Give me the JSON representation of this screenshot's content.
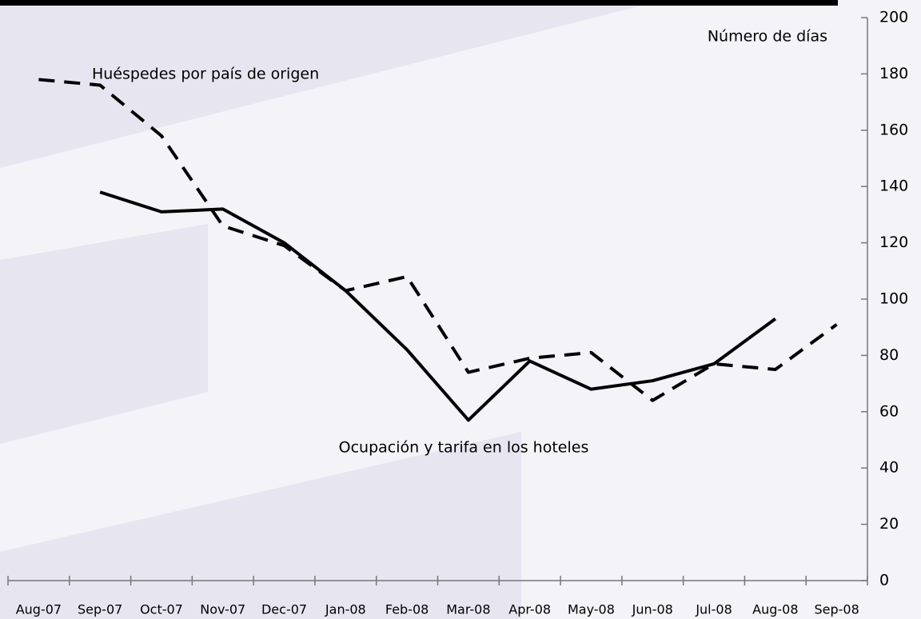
{
  "chart_data": {
    "type": "line",
    "y_label": "Número de días",
    "categories": [
      "Aug-07",
      "Sep-07",
      "Oct-07",
      "Nov-07",
      "Dec-07",
      "Jan-08",
      "Feb-08",
      "Mar-08",
      "Apr-08",
      "May-08",
      "Jun-08",
      "Jul-08",
      "Aug-08",
      "Sep-08"
    ],
    "series": [
      {
        "name": "Huéspedes por país de origen",
        "color": "#000000",
        "dash": true,
        "values": [
          178,
          176,
          158,
          126,
          119,
          103,
          108,
          74,
          79,
          81,
          64,
          77,
          75,
          91
        ]
      },
      {
        "name": "Ocupación y tarifa en los hoteles",
        "color": "#000000",
        "dash": false,
        "values": [
          null,
          138,
          131,
          132,
          120,
          103,
          82,
          57,
          78,
          68,
          71,
          77,
          93,
          null
        ]
      }
    ],
    "ylim": [
      0,
      200
    ],
    "yticks": [
      0,
      20,
      40,
      60,
      80,
      100,
      120,
      140,
      160,
      180,
      200
    ],
    "y_axis_side": "right",
    "grid": false
  }
}
